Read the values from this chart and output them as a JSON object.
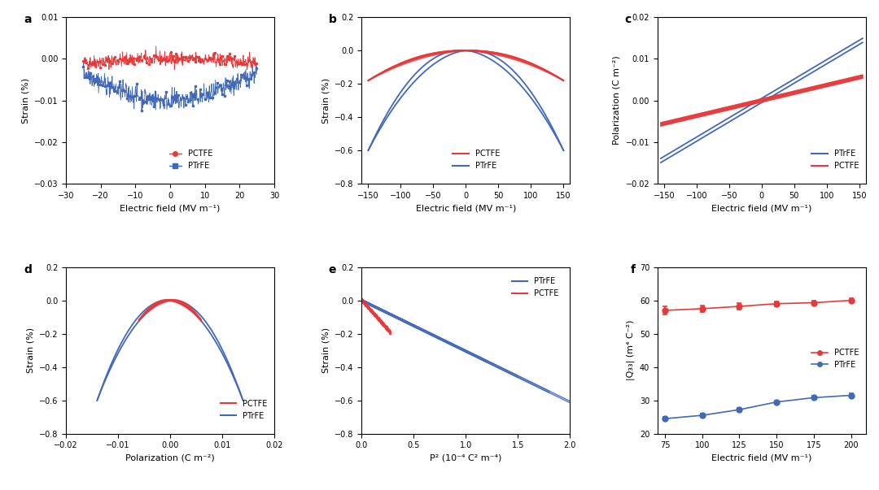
{
  "fig_width": 10.8,
  "fig_height": 6.03,
  "panel_labels": [
    "a",
    "b",
    "c",
    "d",
    "e",
    "f"
  ],
  "red_color": "#e8393a",
  "blue_color": "#4169b8",
  "panel_a": {
    "xlabel": "Electric field (MV m⁻¹)",
    "ylabel": "Strain (%)",
    "xlim": [
      -30,
      30
    ],
    "ylim": [
      -0.03,
      0.01
    ],
    "yticks": [
      0.01,
      0.0,
      -0.01,
      -0.02,
      -0.03
    ],
    "xticks": [
      -30,
      -20,
      -10,
      0,
      10,
      20,
      30
    ],
    "legend_pctfe": "PCTFE",
    "legend_ptrfe": "PTrFE"
  },
  "panel_b": {
    "xlabel": "Electric field (MV m⁻¹)",
    "ylabel": "Strain (%)",
    "xlim": [
      -160,
      160
    ],
    "ylim": [
      -0.8,
      0.2
    ],
    "yticks": [
      0.2,
      0.0,
      -0.2,
      -0.4,
      -0.6,
      -0.8
    ],
    "xticks": [
      -150,
      -100,
      -50,
      0,
      50,
      100,
      150
    ],
    "legend_pctfe": "PCTFE",
    "legend_ptrfe": "PTrFE"
  },
  "panel_c": {
    "xlabel": "Electric field (MV m⁻¹)",
    "ylabel": "Polarization (C m⁻²)",
    "xlim": [
      -160,
      160
    ],
    "ylim": [
      -0.02,
      0.02
    ],
    "yticks": [
      0.02,
      0.01,
      0.0,
      -0.01,
      -0.02
    ],
    "xticks": [
      -150,
      -100,
      -50,
      0,
      50,
      100,
      150
    ],
    "legend_ptrfe": "PTrFE",
    "legend_pctfe": "PCTFE"
  },
  "panel_d": {
    "xlabel": "Polarization (C m⁻²)",
    "ylabel": "Strain (%)",
    "xlim": [
      -0.02,
      0.02
    ],
    "ylim": [
      -0.8,
      0.2
    ],
    "yticks": [
      0.2,
      0.0,
      -0.2,
      -0.4,
      -0.6,
      -0.8
    ],
    "xticks": [
      -0.02,
      -0.01,
      0.0,
      0.01,
      0.02
    ],
    "legend_pctfe": "PCTFE",
    "legend_ptrfe": "PTrFE"
  },
  "panel_e": {
    "xlabel": "P² (10⁻⁴ C² m⁻⁴)",
    "ylabel": "Strain (%)",
    "xlim": [
      0,
      2.0
    ],
    "ylim": [
      -0.8,
      0.2
    ],
    "yticks": [
      0.2,
      0.0,
      -0.2,
      -0.4,
      -0.6,
      -0.8
    ],
    "xticks": [
      0,
      0.5,
      1.0,
      1.5,
      2.0
    ],
    "legend_ptrfe": "PTrFE",
    "legend_pctfe": "PCTFE"
  },
  "panel_f": {
    "xlabel": "Electric field (MV m⁻¹)",
    "ylabel": "|Q₃₃| (m⁴ C⁻²)",
    "xlim": [
      70,
      210
    ],
    "ylim": [
      20,
      70
    ],
    "yticks": [
      20,
      30,
      40,
      50,
      60,
      70
    ],
    "xticks": [
      75,
      100,
      125,
      150,
      175,
      200
    ],
    "legend_pctfe": "PCTFE",
    "legend_ptrfe": "PTrFE",
    "pctfe_x": [
      75,
      100,
      125,
      150,
      175,
      200
    ],
    "pctfe_y": [
      57.0,
      57.5,
      58.2,
      59.0,
      59.3,
      60.0
    ],
    "pctfe_err": [
      1.2,
      1.0,
      1.0,
      0.7,
      0.7,
      0.6
    ],
    "ptrfe_x": [
      75,
      100,
      125,
      150,
      175,
      200
    ],
    "ptrfe_y": [
      24.5,
      25.5,
      27.2,
      29.5,
      30.8,
      31.5
    ],
    "ptrfe_err": [
      0.5,
      0.5,
      0.5,
      0.5,
      0.5,
      0.5
    ]
  }
}
